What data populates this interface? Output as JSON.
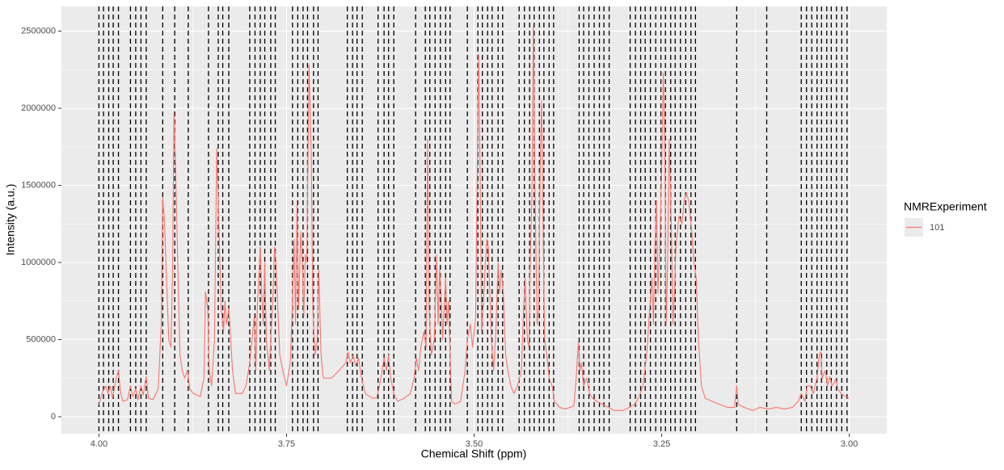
{
  "chart_data": {
    "type": "line",
    "x_label": "Chemical Shift (ppm)",
    "y_label": "Intensity (a.u.)",
    "legend_title": "NMRExperiment",
    "legend_position": "right",
    "xlim": [
      4.05,
      2.95
    ],
    "ylim": [
      -110000,
      2660000
    ],
    "xticks": [
      {
        "value": 4.0,
        "label": "4.00"
      },
      {
        "value": 3.75,
        "label": "3.75"
      },
      {
        "value": 3.5,
        "label": "3.50"
      },
      {
        "value": 3.25,
        "label": "3.25"
      },
      {
        "value": 3.0,
        "label": "3.00"
      }
    ],
    "yticks": [
      0,
      500000,
      1000000,
      1500000,
      2000000,
      2500000
    ],
    "grid": true,
    "panel_color": "#ebebeb",
    "vline_color": "#000000",
    "vlines": [
      4.0,
      3.994,
      3.987,
      3.981,
      3.974,
      3.958,
      3.951,
      3.944,
      3.937,
      3.915,
      3.899,
      3.881,
      3.854,
      3.841,
      3.835,
      3.827,
      3.799,
      3.792,
      3.785,
      3.779,
      3.771,
      3.765,
      3.742,
      3.735,
      3.728,
      3.722,
      3.714,
      3.708,
      3.669,
      3.662,
      3.656,
      3.649,
      3.628,
      3.62,
      3.614,
      3.607,
      3.578,
      3.565,
      3.559,
      3.552,
      3.545,
      3.538,
      3.532,
      3.509,
      3.495,
      3.489,
      3.482,
      3.476,
      3.468,
      3.462,
      3.44,
      3.433,
      3.426,
      3.42,
      3.413,
      3.407,
      3.4,
      3.394,
      3.36,
      3.354,
      3.347,
      3.34,
      3.333,
      3.327,
      3.32,
      3.292,
      3.285,
      3.278,
      3.272,
      3.265,
      3.258,
      3.251,
      3.245,
      3.238,
      3.232,
      3.225,
      3.218,
      3.211,
      3.205,
      3.15,
      3.11,
      3.064,
      3.057,
      3.05,
      3.043,
      3.037,
      3.03,
      3.024,
      3.017,
      3.01,
      3.003
    ],
    "x": [
      4.0,
      3.996,
      3.991,
      3.988,
      3.985,
      3.982,
      3.977,
      3.974,
      3.971,
      3.968,
      3.962,
      3.958,
      3.955,
      3.951,
      3.948,
      3.944,
      3.941,
      3.937,
      3.934,
      3.928,
      3.921,
      3.917,
      3.915,
      3.913,
      3.91,
      3.907,
      3.904,
      3.902,
      3.9,
      3.898,
      3.895,
      3.892,
      3.889,
      3.886,
      3.882,
      3.879,
      3.874,
      3.865,
      3.86,
      3.858,
      3.855,
      3.853,
      3.85,
      3.846,
      3.843,
      3.84,
      3.837,
      3.834,
      3.832,
      3.83,
      3.827,
      3.825,
      3.822,
      3.818,
      3.809,
      3.804,
      3.799,
      3.796,
      3.793,
      3.791,
      3.789,
      3.785,
      3.783,
      3.781,
      3.779,
      3.777,
      3.773,
      3.77,
      3.768,
      3.766,
      3.764,
      3.762,
      3.759,
      3.755,
      3.75,
      3.745,
      3.742,
      3.74,
      3.738,
      3.736,
      3.734,
      3.731,
      3.729,
      3.727,
      3.725,
      3.723,
      3.72,
      3.717,
      3.715,
      3.712,
      3.709,
      3.707,
      3.704,
      3.701,
      3.69,
      3.68,
      3.671,
      3.668,
      3.665,
      3.661,
      3.658,
      3.654,
      3.65,
      3.645,
      3.636,
      3.63,
      3.626,
      3.62,
      3.617,
      3.614,
      3.611,
      3.607,
      3.602,
      3.593,
      3.585,
      3.58,
      3.577,
      3.574,
      3.571,
      3.567,
      3.564,
      3.562,
      3.56,
      3.557,
      3.553,
      3.55,
      3.548,
      3.546,
      3.544,
      3.542,
      3.538,
      3.536,
      3.534,
      3.532,
      3.53,
      3.525,
      3.518,
      3.512,
      3.509,
      3.505,
      3.502,
      3.498,
      3.496,
      3.494,
      3.492,
      3.49,
      3.488,
      3.485,
      3.483,
      3.481,
      3.479,
      3.477,
      3.474,
      3.471,
      3.468,
      3.466,
      3.464,
      3.461,
      3.458,
      3.455,
      3.451,
      3.447,
      3.442,
      3.437,
      3.434,
      3.432,
      3.429,
      3.427,
      3.425,
      3.423,
      3.421,
      3.419,
      3.416,
      3.414,
      3.412,
      3.41,
      3.408,
      3.406,
      3.403,
      3.4,
      3.396,
      3.393,
      3.386,
      3.378,
      3.367,
      3.364,
      3.361,
      3.359,
      3.357,
      3.354,
      3.35,
      3.346,
      3.342,
      3.337,
      3.329,
      3.321,
      3.313,
      3.302,
      3.293,
      3.286,
      3.281,
      3.275,
      3.27,
      3.266,
      3.263,
      3.261,
      3.259,
      3.257,
      3.255,
      3.252,
      3.25,
      3.248,
      3.246,
      3.244,
      3.242,
      3.24,
      3.237,
      3.235,
      3.233,
      3.231,
      3.229,
      3.227,
      3.223,
      3.22,
      3.217,
      3.214,
      3.21,
      3.207,
      3.204,
      3.201,
      3.197,
      3.192,
      3.183,
      3.173,
      3.162,
      3.153,
      3.15,
      3.148,
      3.14,
      3.129,
      3.119,
      3.108,
      3.097,
      3.086,
      3.076,
      3.068,
      3.064,
      3.059,
      3.056,
      3.052,
      3.048,
      3.043,
      3.04,
      3.038,
      3.036,
      3.032,
      3.029,
      3.026,
      3.023,
      3.018,
      3.015,
      3.011,
      3.005,
      3.0
    ],
    "series": [
      {
        "name": "101",
        "color": "#f8766d",
        "values": [
          80000,
          150000,
          200000,
          150000,
          200000,
          120000,
          250000,
          300000,
          150000,
          100000,
          110000,
          200000,
          130000,
          180000,
          110000,
          200000,
          140000,
          260000,
          120000,
          110000,
          180000,
          600000,
          1420000,
          1300000,
          900000,
          500000,
          450000,
          900000,
          1970000,
          1650000,
          1000000,
          400000,
          300000,
          250000,
          300000,
          180000,
          150000,
          130000,
          250000,
          810000,
          700000,
          300000,
          200000,
          500000,
          1740000,
          1200000,
          700000,
          550000,
          750000,
          600000,
          700000,
          550000,
          300000,
          150000,
          150000,
          200000,
          350000,
          500000,
          650000,
          300000,
          700000,
          1100000,
          800000,
          600000,
          1000000,
          500000,
          300000,
          600000,
          800000,
          1100000,
          1000000,
          750000,
          400000,
          300000,
          200000,
          350000,
          750000,
          1150000,
          600000,
          1400000,
          700000,
          1200000,
          1000000,
          650000,
          1050000,
          1000000,
          2280000,
          1700000,
          700000,
          400000,
          500000,
          950000,
          400000,
          250000,
          250000,
          300000,
          350000,
          420000,
          350000,
          400000,
          330000,
          380000,
          250000,
          150000,
          120000,
          120000,
          200000,
          380000,
          300000,
          400000,
          250000,
          150000,
          100000,
          120000,
          150000,
          250000,
          380000,
          300000,
          450000,
          550000,
          450000,
          1800000,
          700000,
          400000,
          500000,
          1050000,
          600000,
          950000,
          800000,
          500000,
          900000,
          600000,
          750000,
          400000,
          100000,
          80000,
          100000,
          300000,
          500000,
          600000,
          450000,
          650000,
          1500000,
          2350000,
          1600000,
          550000,
          700000,
          1000000,
          1150000,
          1100000,
          800000,
          500000,
          300000,
          550000,
          1000000,
          800000,
          950000,
          800000,
          400000,
          300000,
          200000,
          150000,
          200000,
          300000,
          700000,
          900000,
          500000,
          450000,
          1050000,
          1400000,
          2530000,
          1500000,
          600000,
          700000,
          1600000,
          2050000,
          1200000,
          500000,
          400000,
          250000,
          200000,
          100000,
          60000,
          50000,
          70000,
          250000,
          480000,
          300000,
          350000,
          200000,
          250000,
          150000,
          120000,
          100000,
          80000,
          60000,
          40000,
          40000,
          60000,
          80000,
          120000,
          200000,
          400000,
          700000,
          900000,
          600000,
          1100000,
          1400000,
          800000,
          1200000,
          1600000,
          2230000,
          1800000,
          600000,
          1000000,
          1800000,
          1200000,
          600000,
          800000,
          1100000,
          1200000,
          1300000,
          1250000,
          1400000,
          1450000,
          1400000,
          1200000,
          1000000,
          900000,
          500000,
          200000,
          120000,
          100000,
          80000,
          60000,
          60000,
          200000,
          80000,
          60000,
          40000,
          60000,
          50000,
          60000,
          50000,
          60000,
          100000,
          150000,
          100000,
          200000,
          200000,
          150000,
          250000,
          400000,
          420000,
          250000,
          300000,
          200000,
          260000,
          200000,
          240000,
          180000,
          150000,
          130000,
          120000
        ]
      }
    ]
  }
}
